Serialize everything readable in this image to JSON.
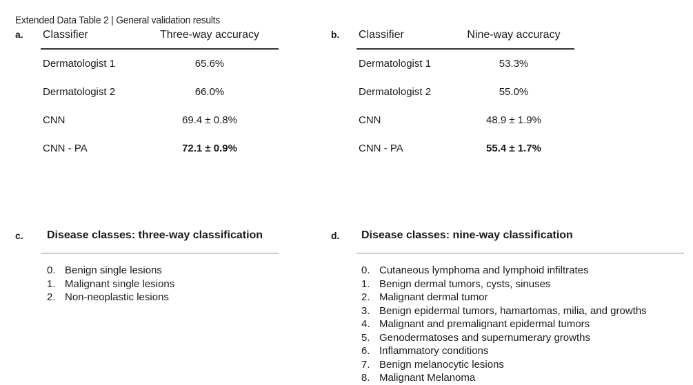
{
  "title": "Extended Data Table 2 | General validation results",
  "panel_a": {
    "letter": "a.",
    "col_classifier": "Classifier",
    "col_accuracy": "Three-way accuracy",
    "rows": [
      {
        "classifier": "Dermatologist 1",
        "accuracy": "65.6%",
        "bold": false
      },
      {
        "classifier": "Dermatologist 2",
        "accuracy": "66.0%",
        "bold": false
      },
      {
        "classifier": "CNN",
        "accuracy": "69.4 ± 0.8%",
        "bold": false
      },
      {
        "classifier": "CNN - PA",
        "accuracy": "72.1 ± 0.9%",
        "bold": true
      }
    ]
  },
  "panel_b": {
    "letter": "b.",
    "col_classifier": "Classifier",
    "col_accuracy": "Nine-way accuracy",
    "rows": [
      {
        "classifier": "Dermatologist 1",
        "accuracy": "53.3%",
        "bold": false
      },
      {
        "classifier": "Dermatologist 2",
        "accuracy": "55.0%",
        "bold": false
      },
      {
        "classifier": "CNN",
        "accuracy": "48.9 ± 1.9%",
        "bold": false
      },
      {
        "classifier": "CNN - PA",
        "accuracy": "55.4 ± 1.7%",
        "bold": true
      }
    ]
  },
  "panel_c": {
    "letter": "c.",
    "heading": "Disease classes: three-way classification",
    "classes": [
      {
        "num": "0.",
        "label": "Benign single lesions"
      },
      {
        "num": "1.",
        "label": "Malignant single lesions"
      },
      {
        "num": "2.",
        "label": "Non-neoplastic lesions"
      }
    ]
  },
  "panel_d": {
    "letter": "d.",
    "heading": "Disease classes: nine-way classification",
    "classes": [
      {
        "num": "0.",
        "label": "Cutaneous lymphoma and lymphoid infiltrates"
      },
      {
        "num": "1.",
        "label": "Benign dermal tumors, cysts, sinuses"
      },
      {
        "num": "2.",
        "label": "Malignant dermal tumor"
      },
      {
        "num": "3.",
        "label": "Benign epidermal tumors, hamartomas, milia, and growths"
      },
      {
        "num": "4.",
        "label": "Malignant and premalignant epidermal tumors"
      },
      {
        "num": "5.",
        "label": "Genodermatoses and supernumerary growths"
      },
      {
        "num": "6.",
        "label": "Inflammatory conditions"
      },
      {
        "num": "7.",
        "label": "Benign melanocytic lesions"
      },
      {
        "num": "8.",
        "label": "Malignant Melanoma"
      }
    ]
  }
}
